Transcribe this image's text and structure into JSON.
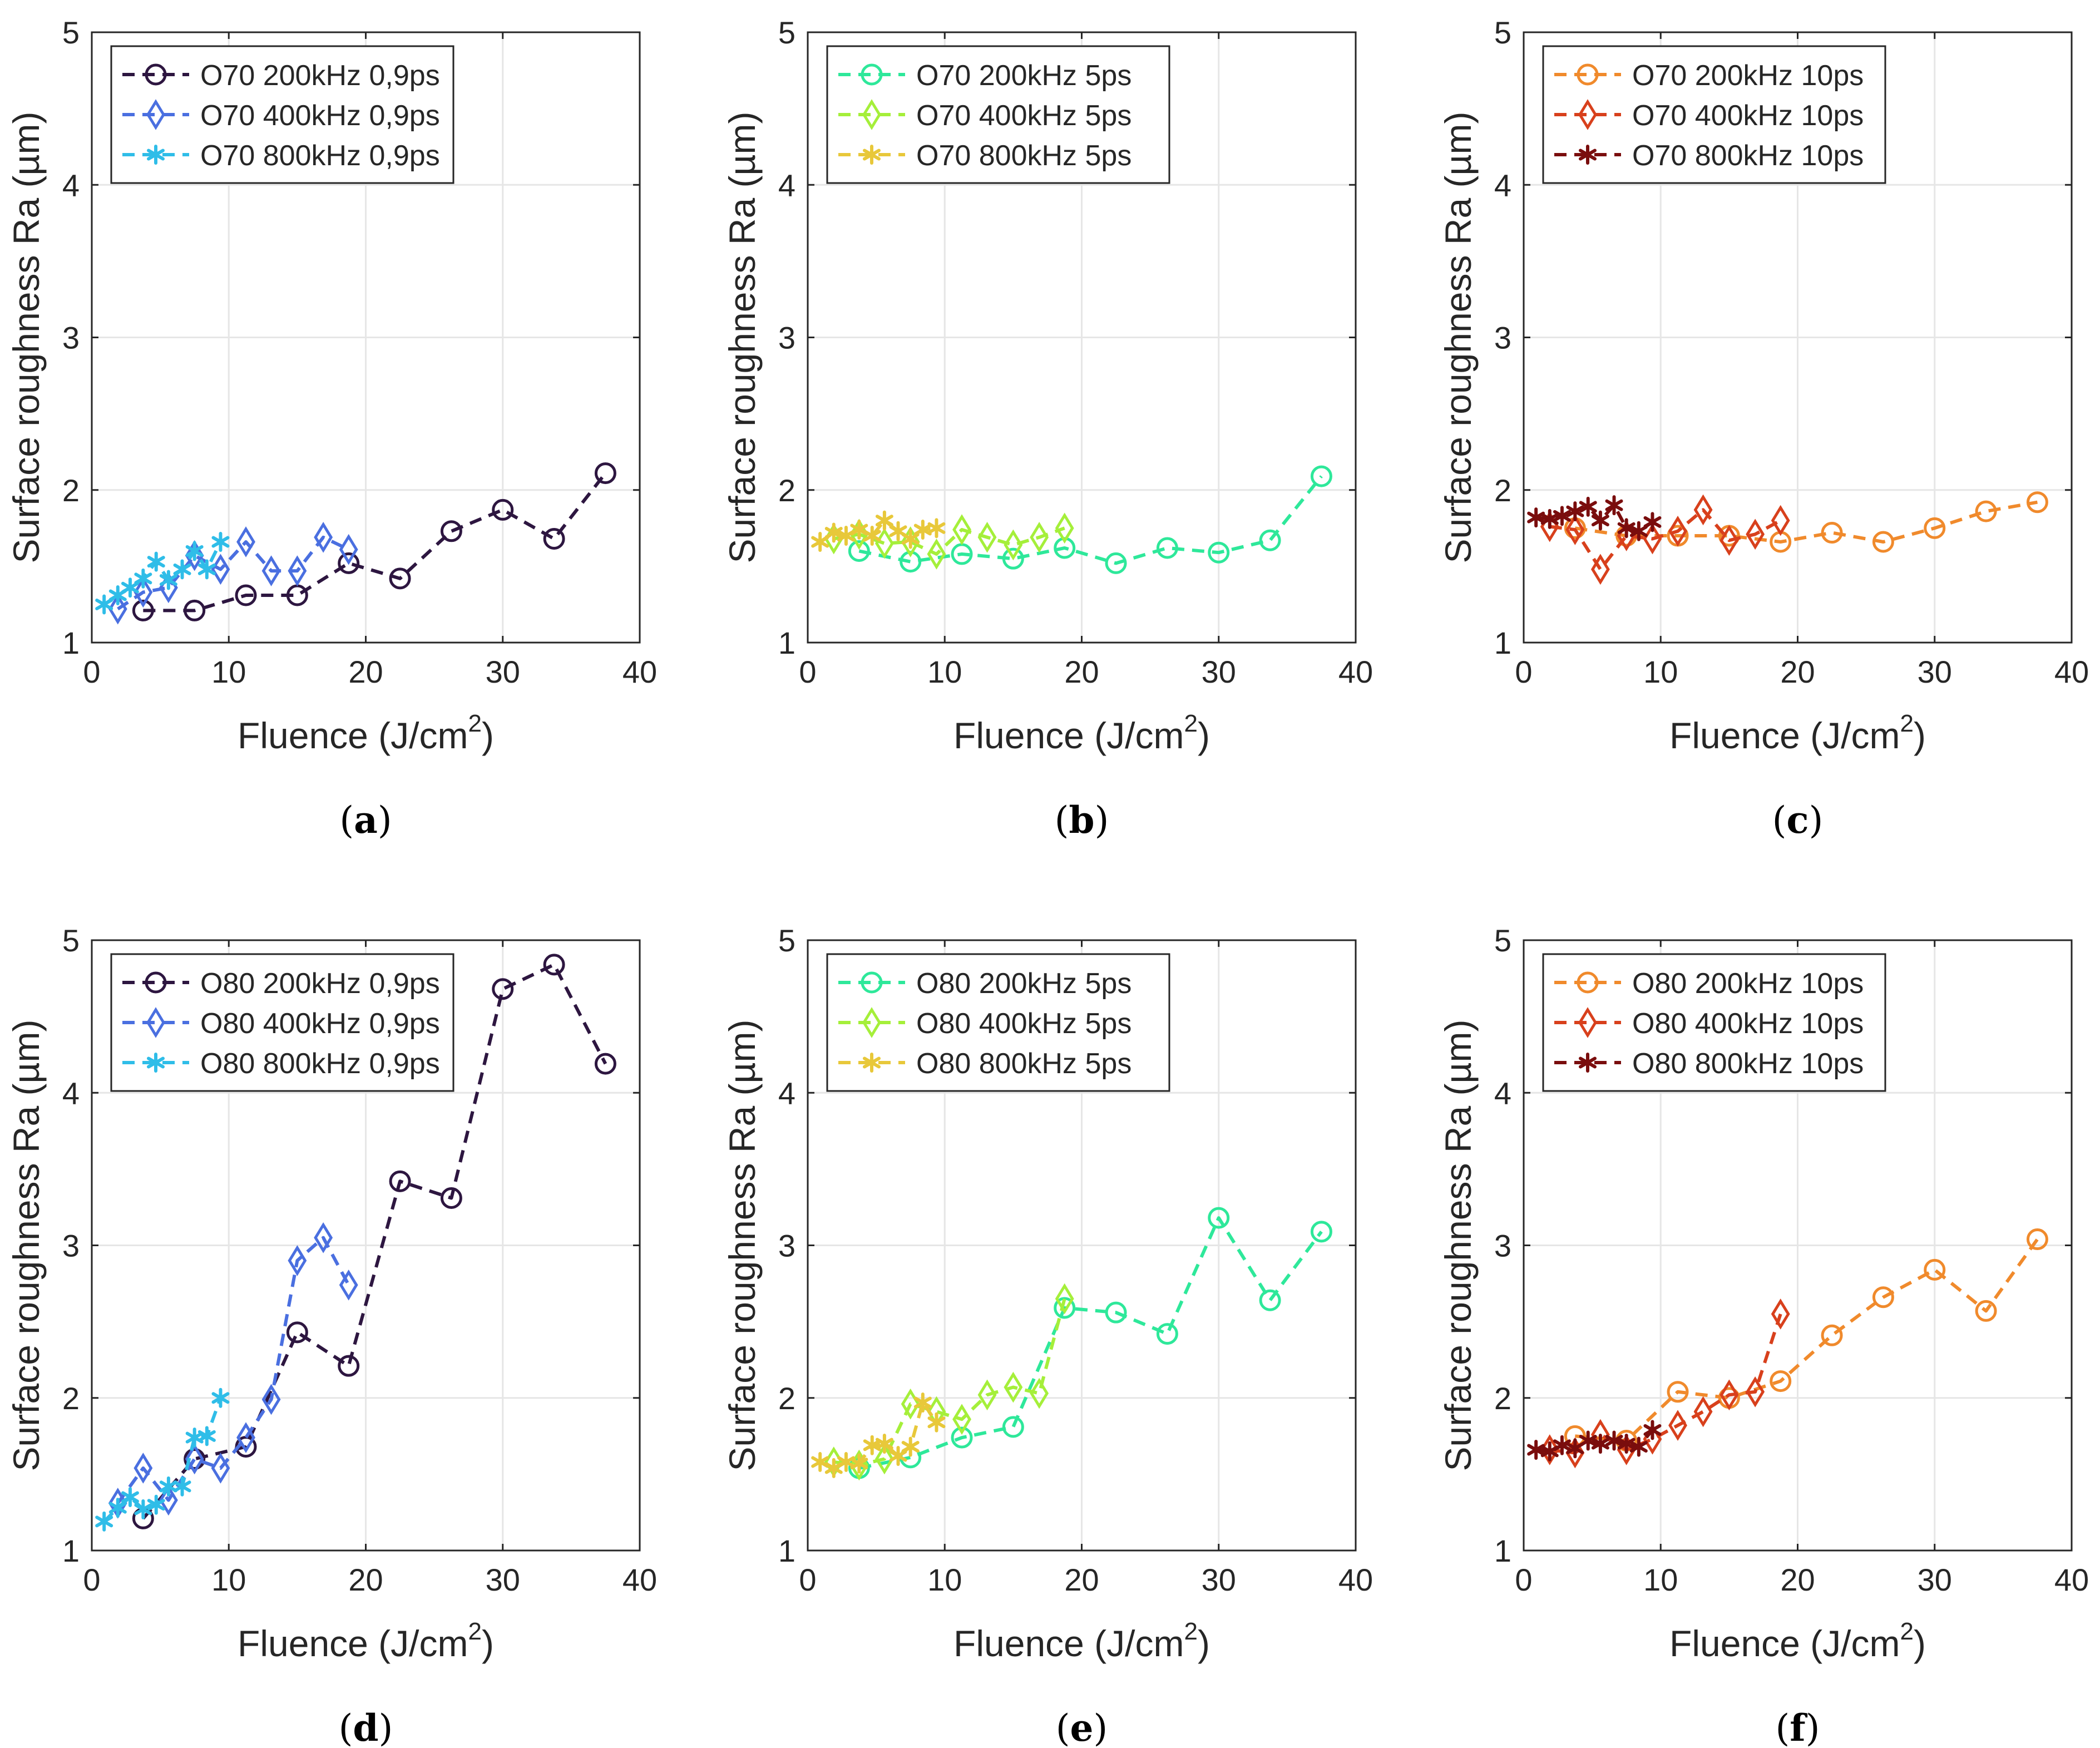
{
  "figure": {
    "panels": [
      {
        "caption": "(a)",
        "caption_letter": "a",
        "series_group": "O70 0,9ps"
      }
    ]
  },
  "styles": {
    "line_dash": "dashed",
    "marker_names": [
      "circle",
      "diamond",
      "asterisk"
    ],
    "colors": {
      "c0_9": [
        "#2d1640",
        "#4a6fe0",
        "#2fbde8"
      ],
      "c5": [
        "#2ee89a",
        "#a5ef3a",
        "#e8c83a"
      ],
      "c10": [
        "#f08a2c",
        "#d8401c",
        "#7a0d0d"
      ]
    },
    "grid_color": "#e6e6e6",
    "axis_color": "#262626"
  },
  "chart_data": [
    {
      "type": "line",
      "caption": "(a)",
      "caption_letter": "a",
      "xlabel": "Fluence (J/cm",
      "xlabel_sup": "2",
      "xlabel_end": ")",
      "ylabel": "Surface roughness Ra (µm)",
      "xlim": [
        0,
        40
      ],
      "ylim": [
        1,
        5
      ],
      "xticks": [
        "0",
        "10",
        "20",
        "30",
        "40"
      ],
      "yticks": [
        "1",
        "2",
        "3",
        "4",
        "5"
      ],
      "grid": true,
      "legend_position": "top-left",
      "series": [
        {
          "name": "O70 200kHz 0,9ps",
          "marker": "circle",
          "color": "#2d1640",
          "x": [
            3.75,
            7.5,
            11.25,
            15.0,
            18.75,
            22.5,
            26.25,
            30.0,
            33.75,
            37.5
          ],
          "y": [
            1.21,
            1.21,
            1.31,
            1.31,
            1.52,
            1.42,
            1.73,
            1.87,
            1.68,
            2.11
          ]
        },
        {
          "name": "O70 400kHz 0,9ps",
          "marker": "diamond",
          "color": "#4a6fe0",
          "x": [
            1.9,
            3.75,
            5.6,
            7.5,
            9.4,
            11.25,
            13.1,
            15.0,
            16.9,
            18.75
          ],
          "y": [
            1.22,
            1.33,
            1.36,
            1.57,
            1.48,
            1.66,
            1.47,
            1.47,
            1.69,
            1.61
          ]
        },
        {
          "name": "O70 800kHz 0,9ps",
          "marker": "asterisk",
          "color": "#2fbde8",
          "x": [
            0.9,
            1.9,
            2.8,
            3.75,
            4.7,
            5.6,
            6.6,
            7.5,
            8.4,
            9.4
          ],
          "y": [
            1.25,
            1.31,
            1.36,
            1.42,
            1.53,
            1.41,
            1.48,
            1.6,
            1.48,
            1.66
          ]
        }
      ]
    },
    {
      "type": "line",
      "caption": "(b)",
      "caption_letter": "b",
      "xlabel": "Fluence (J/cm",
      "xlabel_sup": "2",
      "xlabel_end": ")",
      "ylabel": "Surface roughness Ra (µm)",
      "xlim": [
        0,
        40
      ],
      "ylim": [
        1,
        5
      ],
      "xticks": [
        "0",
        "10",
        "20",
        "30",
        "40"
      ],
      "yticks": [
        "1",
        "2",
        "3",
        "4",
        "5"
      ],
      "grid": true,
      "legend_position": "top-left",
      "series": [
        {
          "name": "O70 200kHz 5ps",
          "marker": "circle",
          "color": "#2ee89a",
          "x": [
            3.75,
            7.5,
            11.25,
            15.0,
            18.75,
            22.5,
            26.25,
            30.0,
            33.75,
            37.5
          ],
          "y": [
            1.6,
            1.53,
            1.58,
            1.55,
            1.62,
            1.52,
            1.62,
            1.59,
            1.67,
            2.09
          ]
        },
        {
          "name": "O70 400kHz 5ps",
          "marker": "diamond",
          "color": "#a5ef3a",
          "x": [
            1.9,
            3.75,
            5.6,
            7.5,
            9.4,
            11.25,
            13.1,
            15.0,
            16.9,
            18.75
          ],
          "y": [
            1.68,
            1.71,
            1.65,
            1.66,
            1.58,
            1.74,
            1.69,
            1.64,
            1.69,
            1.75
          ]
        },
        {
          "name": "O70 800kHz 5ps",
          "marker": "asterisk",
          "color": "#e8c83a",
          "x": [
            0.9,
            1.9,
            2.8,
            3.75,
            4.7,
            5.6,
            6.6,
            7.5,
            8.4,
            9.4
          ],
          "y": [
            1.66,
            1.72,
            1.7,
            1.74,
            1.7,
            1.8,
            1.73,
            1.68,
            1.74,
            1.75
          ]
        }
      ]
    },
    {
      "type": "line",
      "caption": "(c)",
      "caption_letter": "c",
      "xlabel": "Fluence (J/cm",
      "xlabel_sup": "2",
      "xlabel_end": ")",
      "ylabel": "Surface roughness Ra (µm)",
      "xlim": [
        0,
        40
      ],
      "ylim": [
        1,
        5
      ],
      "xticks": [
        "0",
        "10",
        "20",
        "30",
        "40"
      ],
      "yticks": [
        "1",
        "2",
        "3",
        "4",
        "5"
      ],
      "grid": true,
      "legend_position": "top-left",
      "series": [
        {
          "name": "O70 200kHz 10ps",
          "marker": "circle",
          "color": "#f08a2c",
          "x": [
            3.75,
            7.5,
            11.25,
            15.0,
            18.75,
            22.5,
            26.25,
            30.0,
            33.75,
            37.5
          ],
          "y": [
            1.75,
            1.7,
            1.7,
            1.7,
            1.66,
            1.72,
            1.66,
            1.75,
            1.86,
            1.92
          ]
        },
        {
          "name": "O70 400kHz 10ps",
          "marker": "diamond",
          "color": "#d8401c",
          "x": [
            1.9,
            3.75,
            5.6,
            7.5,
            9.4,
            11.25,
            13.1,
            15.0,
            16.9,
            18.75
          ],
          "y": [
            1.76,
            1.74,
            1.48,
            1.7,
            1.68,
            1.73,
            1.87,
            1.67,
            1.71,
            1.8
          ]
        },
        {
          "name": "O70 800kHz 10ps",
          "marker": "asterisk",
          "color": "#7a0d0d",
          "x": [
            0.9,
            1.9,
            2.8,
            3.75,
            4.7,
            5.6,
            6.6,
            7.5,
            8.4,
            9.4
          ],
          "y": [
            1.82,
            1.81,
            1.83,
            1.86,
            1.89,
            1.8,
            1.9,
            1.75,
            1.73,
            1.79
          ]
        }
      ]
    },
    {
      "type": "line",
      "caption": "(d)",
      "caption_letter": "d",
      "xlabel": "Fluence (J/cm",
      "xlabel_sup": "2",
      "xlabel_end": ")",
      "ylabel": "Surface roughness Ra (µm)",
      "xlim": [
        0,
        40
      ],
      "ylim": [
        1,
        5
      ],
      "xticks": [
        "0",
        "10",
        "20",
        "30",
        "40"
      ],
      "yticks": [
        "1",
        "2",
        "3",
        "4",
        "5"
      ],
      "grid": true,
      "legend_position": "top-left",
      "series": [
        {
          "name": "O80 200kHz 0,9ps",
          "marker": "circle",
          "color": "#2d1640",
          "x": [
            3.75,
            7.5,
            11.25,
            15.0,
            18.75,
            22.5,
            26.25,
            30.0,
            33.75,
            37.5
          ],
          "y": [
            1.21,
            1.6,
            1.68,
            2.43,
            2.21,
            3.42,
            3.31,
            4.68,
            4.84,
            4.19
          ]
        },
        {
          "name": "O80 400kHz 0,9ps",
          "marker": "diamond",
          "color": "#4a6fe0",
          "x": [
            1.9,
            3.75,
            5.6,
            7.5,
            9.4,
            11.25,
            13.1,
            15.0,
            16.9,
            18.75
          ],
          "y": [
            1.31,
            1.54,
            1.33,
            1.6,
            1.54,
            1.74,
            1.99,
            2.9,
            3.05,
            2.74
          ]
        },
        {
          "name": "O80 800kHz 0,9ps",
          "marker": "asterisk",
          "color": "#2fbde8",
          "x": [
            0.9,
            1.9,
            2.8,
            3.75,
            4.7,
            5.6,
            6.6,
            7.5,
            8.4,
            9.4
          ],
          "y": [
            1.19,
            1.28,
            1.35,
            1.27,
            1.3,
            1.42,
            1.42,
            1.74,
            1.75,
            2.0
          ]
        }
      ]
    },
    {
      "type": "line",
      "caption": "(e)",
      "caption_letter": "e",
      "xlabel": "Fluence (J/cm",
      "xlabel_sup": "2",
      "xlabel_end": ")",
      "ylabel": "Surface roughness Ra (µm)",
      "xlim": [
        0,
        40
      ],
      "ylim": [
        1,
        5
      ],
      "xticks": [
        "0",
        "10",
        "20",
        "30",
        "40"
      ],
      "yticks": [
        "1",
        "2",
        "3",
        "4",
        "5"
      ],
      "grid": true,
      "legend_position": "top-left",
      "series": [
        {
          "name": "O80 200kHz 5ps",
          "marker": "circle",
          "color": "#2ee89a",
          "x": [
            3.75,
            7.5,
            11.25,
            15.0,
            18.75,
            22.5,
            26.25,
            30.0,
            33.75,
            37.5
          ],
          "y": [
            1.54,
            1.61,
            1.74,
            1.81,
            2.59,
            2.56,
            2.42,
            3.18,
            2.64,
            3.09
          ]
        },
        {
          "name": "O80 400kHz 5ps",
          "marker": "diamond",
          "color": "#a5ef3a",
          "x": [
            1.9,
            3.75,
            5.6,
            7.5,
            9.4,
            11.25,
            13.1,
            15.0,
            16.9,
            18.75
          ],
          "y": [
            1.58,
            1.56,
            1.6,
            1.96,
            1.91,
            1.86,
            2.02,
            2.07,
            2.03,
            2.65
          ]
        },
        {
          "name": "O80 800kHz 5ps",
          "marker": "asterisk",
          "color": "#e8c83a",
          "x": [
            0.9,
            1.9,
            2.8,
            3.75,
            4.7,
            5.6,
            6.6,
            7.5,
            8.4,
            9.4
          ],
          "y": [
            1.58,
            1.54,
            1.58,
            1.57,
            1.69,
            1.7,
            1.62,
            1.68,
            1.97,
            1.84
          ]
        }
      ]
    },
    {
      "type": "line",
      "caption": "(f)",
      "caption_letter": "f",
      "xlabel": "Fluence (J/cm",
      "xlabel_sup": "2",
      "xlabel_end": ")",
      "ylabel": "Surface roughness Ra (µm)",
      "xlim": [
        0,
        40
      ],
      "ylim": [
        1,
        5
      ],
      "xticks": [
        "0",
        "10",
        "20",
        "30",
        "40"
      ],
      "yticks": [
        "1",
        "2",
        "3",
        "4",
        "5"
      ],
      "grid": true,
      "legend_position": "top-left",
      "series": [
        {
          "name": "O80 200kHz 10ps",
          "marker": "circle",
          "color": "#f08a2c",
          "x": [
            3.75,
            7.5,
            11.25,
            15.0,
            18.75,
            22.5,
            26.25,
            30.0,
            33.75,
            37.5
          ],
          "y": [
            1.75,
            1.72,
            2.04,
            2.0,
            2.11,
            2.41,
            2.66,
            2.84,
            2.57,
            3.04
          ]
        },
        {
          "name": "O80 400kHz 10ps",
          "marker": "diamond",
          "color": "#d8401c",
          "x": [
            1.9,
            3.75,
            5.6,
            7.5,
            9.4,
            11.25,
            13.1,
            15.0,
            16.9,
            18.75
          ],
          "y": [
            1.66,
            1.64,
            1.76,
            1.66,
            1.73,
            1.82,
            1.91,
            2.02,
            2.04,
            2.55
          ]
        },
        {
          "name": "O80 800kHz 10ps",
          "marker": "asterisk",
          "color": "#7a0d0d",
          "x": [
            0.9,
            1.9,
            2.8,
            3.75,
            4.7,
            5.6,
            6.6,
            7.5,
            8.4,
            9.4
          ],
          "y": [
            1.66,
            1.65,
            1.69,
            1.67,
            1.72,
            1.7,
            1.72,
            1.7,
            1.68,
            1.79
          ]
        }
      ]
    }
  ]
}
